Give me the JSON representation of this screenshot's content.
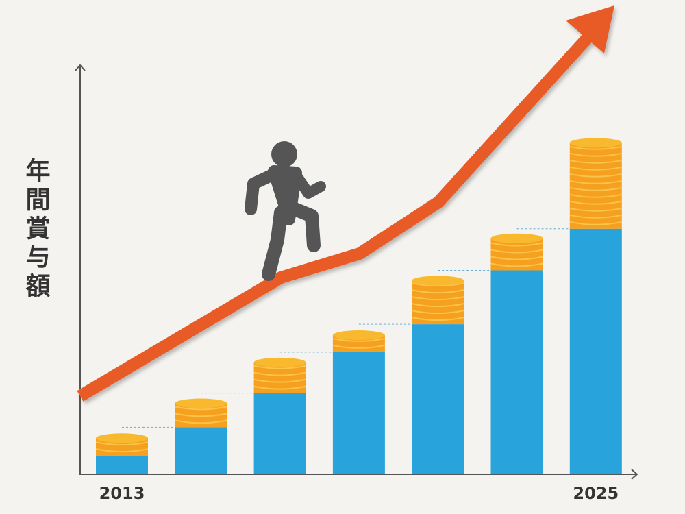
{
  "chart_data": {
    "type": "bar",
    "stacked": true,
    "y_label": "年間賞与額",
    "categories": [
      "2013",
      null,
      null,
      null,
      null,
      null,
      "2025"
    ],
    "series": [
      {
        "color": "#29a3db",
        "values": [
          27,
          69,
          119,
          179,
          220,
          299,
          360
        ]
      },
      {
        "color": "#f5a01f",
        "values": [
          32,
          41,
          51,
          31,
          70,
          53,
          132
        ]
      }
    ],
    "ylim": [
      0,
      600
    ]
  }
}
